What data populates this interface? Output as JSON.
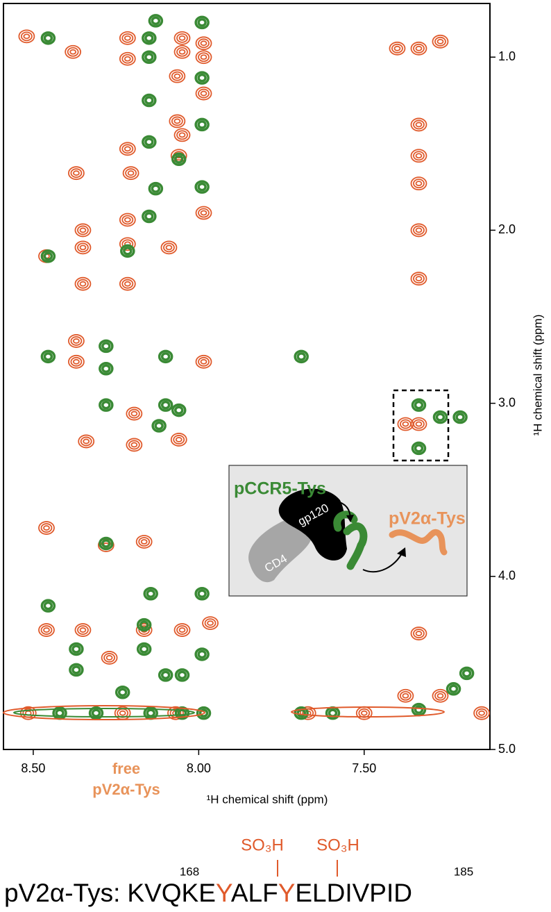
{
  "chart_data": {
    "type": "nmr",
    "xlabel": "¹H chemical shift (ppm)",
    "ylabel": "¹H chemical shift (ppm)",
    "xlim": [
      8.59,
      7.12
    ],
    "ylim": [
      0.69,
      5.0
    ],
    "xticks": [
      {
        "value": 8.5,
        "label": "8.50"
      },
      {
        "value": 8.0,
        "label": "8.00"
      },
      {
        "value": 7.5,
        "label": "7.50"
      }
    ],
    "yticks": [
      {
        "value": 1,
        "label": "1.0"
      },
      {
        "value": 2,
        "label": "2.0"
      },
      {
        "value": 3,
        "label": "3.0"
      },
      {
        "value": 4,
        "label": "4.0"
      },
      {
        "value": 5,
        "label": "5.0"
      }
    ],
    "series": [
      {
        "color": "#e05a2b",
        "x": [
          8.52,
          8.38,
          8.215,
          8.215,
          8.05,
          8.05,
          7.985,
          7.985,
          8.065,
          7.985,
          8.065,
          8.05,
          8.06,
          8.215,
          8.37,
          8.205,
          7.985,
          8.215,
          8.35,
          8.46,
          8.35,
          8.215,
          8.09,
          8.35,
          8.215,
          8.37,
          8.37,
          7.985,
          8.195,
          8.34,
          8.195,
          8.06,
          8.46,
          8.28,
          8.165,
          8.46,
          8.35,
          8.165,
          8.05,
          7.965,
          8.27,
          8.23,
          8.515,
          8.07,
          7.4,
          7.335,
          7.27,
          7.335,
          7.335,
          7.335,
          7.335,
          7.335,
          7.375,
          7.335,
          7.335,
          7.375,
          7.27,
          7.5,
          7.145,
          7.67
        ],
        "y": [
          0.88,
          0.97,
          0.89,
          1.01,
          0.89,
          0.97,
          0.92,
          1.0,
          1.11,
          1.21,
          1.37,
          1.45,
          1.57,
          1.53,
          1.67,
          1.67,
          1.9,
          1.94,
          2.0,
          2.15,
          2.1,
          2.08,
          2.1,
          2.31,
          2.31,
          2.64,
          2.76,
          2.76,
          3.06,
          3.22,
          3.24,
          3.21,
          3.72,
          3.82,
          3.8,
          4.31,
          4.31,
          4.31,
          4.31,
          4.27,
          4.47,
          4.79,
          4.79,
          4.79,
          0.95,
          0.95,
          0.91,
          1.39,
          1.57,
          1.73,
          2.0,
          2.28,
          3.12,
          3.12,
          4.33,
          4.69,
          4.69,
          4.79,
          4.79,
          4.79
        ]
      },
      {
        "color": "#3a8a35",
        "x": [
          8.455,
          8.15,
          8.13,
          7.99,
          8.15,
          7.99,
          8.15,
          7.99,
          8.15,
          8.06,
          8.13,
          7.99,
          8.15,
          8.455,
          8.215,
          8.455,
          8.28,
          8.28,
          8.1,
          7.69,
          8.28,
          8.1,
          8.06,
          8.12,
          7.335,
          7.27,
          7.21,
          7.335,
          8.28,
          8.145,
          7.99,
          8.455,
          8.165,
          8.37,
          8.165,
          7.99,
          8.37,
          8.1,
          8.05,
          8.23,
          8.42,
          8.31,
          8.145,
          8.05,
          7.985,
          7.69,
          7.595,
          7.335,
          7.19,
          7.23
        ],
        "y": [
          0.89,
          0.89,
          0.79,
          0.8,
          1.0,
          1.12,
          1.25,
          1.39,
          1.49,
          1.59,
          1.76,
          1.75,
          1.92,
          2.15,
          2.12,
          2.73,
          2.67,
          2.8,
          2.73,
          2.73,
          3.01,
          3.01,
          3.04,
          3.13,
          3.01,
          3.08,
          3.08,
          3.26,
          3.81,
          4.1,
          4.1,
          4.17,
          4.28,
          4.42,
          4.42,
          4.45,
          4.54,
          4.57,
          4.57,
          4.67,
          4.79,
          4.79,
          4.79,
          4.79,
          4.79,
          4.79,
          4.79,
          4.77,
          4.56,
          4.65
        ]
      }
    ],
    "annotations": {
      "free_label": [
        "free",
        "pV2α-Tys"
      ],
      "inset": {
        "ligand": "pCCR5-Tys",
        "receptor": "gp120",
        "coreceptor": "CD4",
        "released": "pV2α-Tys"
      }
    },
    "sequence": {
      "name": "pV2α-Tys:",
      "parts": [
        "KVQKE",
        "Y",
        "ALF",
        "Y",
        "ELDIVPID"
      ],
      "start": "168",
      "end": "185",
      "modification": "SO₃H"
    }
  }
}
